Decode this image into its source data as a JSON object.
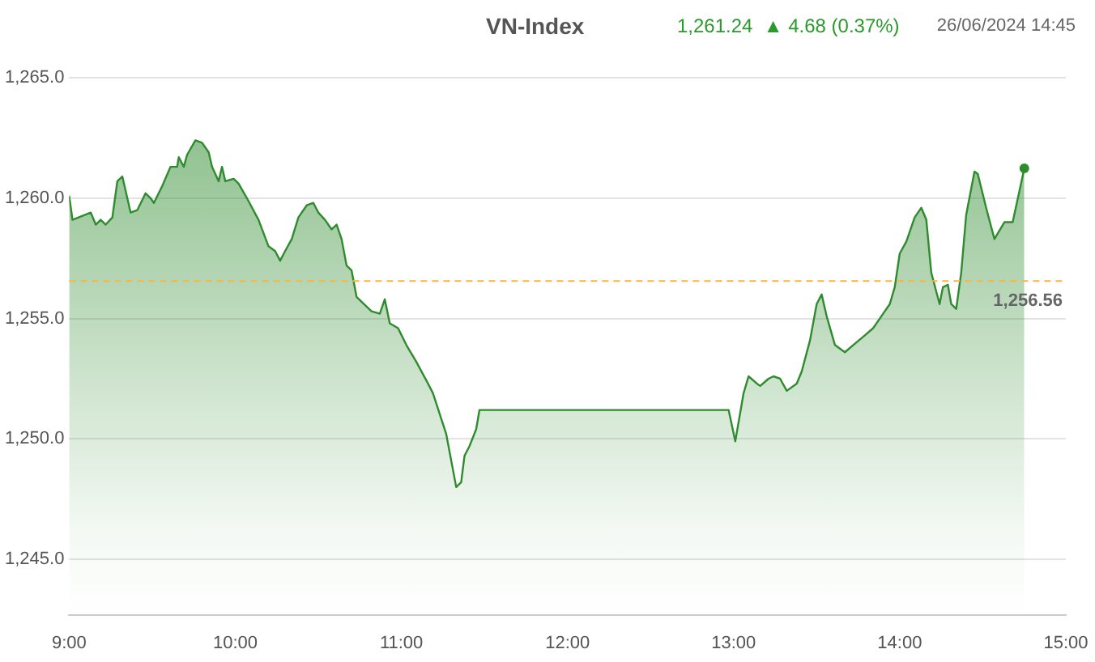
{
  "chart_data": {
    "type": "area",
    "title": "VN-Index",
    "subtitle": "1,261.24  ▲ 4.68 (0.37%)",
    "annotations": [
      "26/06/2024 14:45"
    ],
    "x": [
      9.0,
      9.02,
      9.13,
      9.16,
      9.19,
      9.22,
      9.26,
      9.29,
      9.32,
      9.37,
      9.41,
      9.46,
      9.49,
      9.51,
      9.56,
      9.61,
      9.65,
      9.66,
      9.69,
      9.71,
      9.76,
      9.8,
      9.84,
      9.86,
      9.9,
      9.92,
      9.94,
      9.99,
      10.02,
      10.07,
      10.14,
      10.2,
      10.24,
      10.27,
      10.3,
      10.34,
      10.38,
      10.43,
      10.47,
      10.5,
      10.54,
      10.58,
      10.61,
      10.64,
      10.67,
      10.7,
      10.73,
      10.82,
      10.87,
      10.9,
      10.93,
      10.98,
      11.03,
      11.09,
      11.16,
      11.19,
      11.27,
      11.33,
      11.36,
      11.38,
      11.41,
      11.45,
      11.47,
      12.97,
      13.01,
      13.06,
      13.09,
      13.14,
      13.16,
      13.21,
      13.24,
      13.28,
      13.32,
      13.38,
      13.41,
      13.46,
      13.5,
      13.53,
      13.56,
      13.61,
      13.67,
      13.72,
      13.79,
      13.84,
      13.89,
      13.94,
      13.97,
      14.0,
      14.04,
      14.09,
      14.13,
      14.16,
      14.19,
      14.24,
      14.26,
      14.29,
      14.31,
      14.34,
      14.37,
      14.4,
      14.45,
      14.47,
      14.52,
      14.57,
      14.63,
      14.68,
      14.75
    ],
    "series": [
      {
        "color": "#2e8b2e",
        "values": [
          1260.1,
          1259.1,
          1259.4,
          1258.9,
          1259.1,
          1258.9,
          1259.2,
          1260.7,
          1260.9,
          1259.4,
          1259.5,
          1260.2,
          1260.0,
          1259.8,
          1260.5,
          1261.3,
          1261.3,
          1261.7,
          1261.3,
          1261.8,
          1262.4,
          1262.3,
          1261.9,
          1261.3,
          1260.7,
          1261.3,
          1260.7,
          1260.8,
          1260.6,
          1260.0,
          1259.1,
          1258.0,
          1257.8,
          1257.4,
          1257.8,
          1258.3,
          1259.2,
          1259.7,
          1259.8,
          1259.4,
          1259.1,
          1258.7,
          1258.9,
          1258.3,
          1257.2,
          1257.0,
          1255.9,
          1255.3,
          1255.2,
          1255.8,
          1254.8,
          1254.6,
          1253.9,
          1253.2,
          1252.3,
          1251.9,
          1250.2,
          1248.0,
          1248.2,
          1249.3,
          1249.7,
          1250.4,
          1251.2,
          1251.2,
          1249.9,
          1251.9,
          1252.6,
          1252.3,
          1252.2,
          1252.5,
          1252.6,
          1252.5,
          1252.0,
          1252.3,
          1252.8,
          1254.1,
          1255.6,
          1256.0,
          1255.1,
          1253.9,
          1253.6,
          1253.9,
          1254.3,
          1254.6,
          1255.1,
          1255.6,
          1256.3,
          1257.7,
          1258.2,
          1259.2,
          1259.6,
          1259.1,
          1256.9,
          1255.6,
          1256.3,
          1256.4,
          1255.6,
          1255.4,
          1256.9,
          1259.3,
          1261.1,
          1261.0,
          1259.6,
          1258.3,
          1259.0,
          1259.0,
          1261.24
        ]
      }
    ],
    "xlim": [
      9,
      15
    ],
    "xticks": [
      {
        "value": 9,
        "label": "9:00"
      },
      {
        "value": 10,
        "label": "10:00"
      },
      {
        "value": 11,
        "label": "11:00"
      },
      {
        "value": 12,
        "label": "12:00"
      },
      {
        "value": 13,
        "label": "13:00"
      },
      {
        "value": 14,
        "label": "14:00"
      },
      {
        "value": 15,
        "label": "15:00"
      }
    ],
    "ylim": [
      1242.7,
      1265
    ],
    "yticks": [
      {
        "value": 1245,
        "label": "1,245.0"
      },
      {
        "value": 1250,
        "label": "1,250.0"
      },
      {
        "value": 1255,
        "label": "1,255.0"
      },
      {
        "value": 1260,
        "label": "1,260.0"
      },
      {
        "value": 1265,
        "label": "1,265.0"
      }
    ],
    "ref_lines": [
      {
        "axis": "y",
        "value": 1256.56,
        "label": "1,256.56",
        "color": "#f5b642",
        "line_style": "dashed"
      }
    ],
    "grid": "y",
    "legend": false
  }
}
